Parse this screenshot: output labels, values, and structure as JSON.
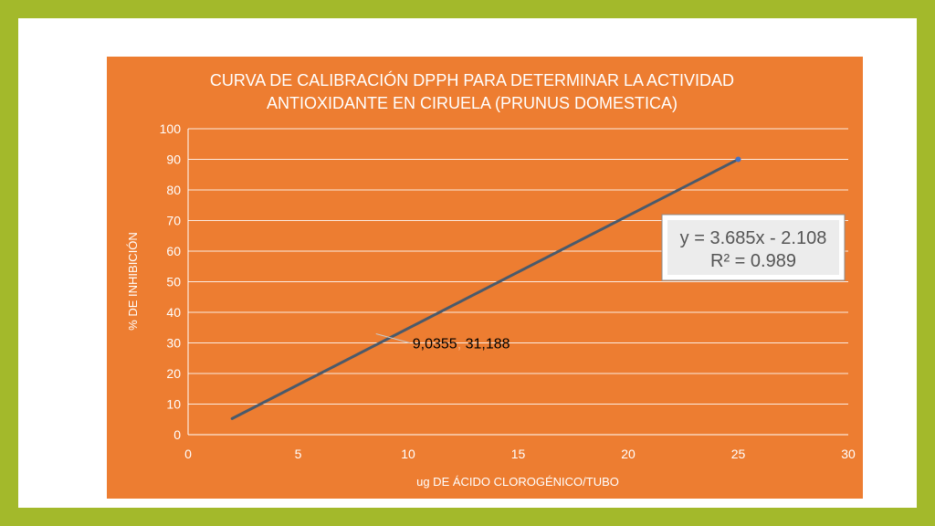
{
  "chart_data": {
    "type": "scatter",
    "title_lines": [
      "CURVA DE CALIBRACIÓN DPPH PARA DETERMINAR LA ACTIVIDAD",
      "ANTIOXIDANTE EN CIRUELA (PRUNUS DOMESTICA)"
    ],
    "xlabel": "ug DE ÁCIDO CLOROGÉNICO/TUBO",
    "ylabel": "% DE INHIBICIÓN",
    "xlim": [
      0,
      30
    ],
    "ylim": [
      0,
      100
    ],
    "xticks": [
      "0",
      "5",
      "10",
      "15",
      "20",
      "25",
      "30"
    ],
    "yticks": [
      "0",
      "10",
      "20",
      "30",
      "40",
      "50",
      "60",
      "70",
      "80",
      "90",
      "100"
    ],
    "grid": "horizontal",
    "trendline": {
      "slope": 3.685,
      "intercept": -2.108,
      "x_start": 2,
      "x_end": 25,
      "equation": "y = 3.685x - 2.108",
      "r_squared": "R² = 0.989"
    },
    "points": [
      {
        "x": 25,
        "y": 90
      }
    ],
    "annotation": {
      "x": 9.0355,
      "y": 31.188,
      "label_x": "9,0355",
      "separator": ",",
      "label_y": "31,188"
    },
    "colors": {
      "background": "#ed7d31",
      "line": "#4a5a6b",
      "point": "#4472c4",
      "grid": "#ffffff"
    }
  }
}
